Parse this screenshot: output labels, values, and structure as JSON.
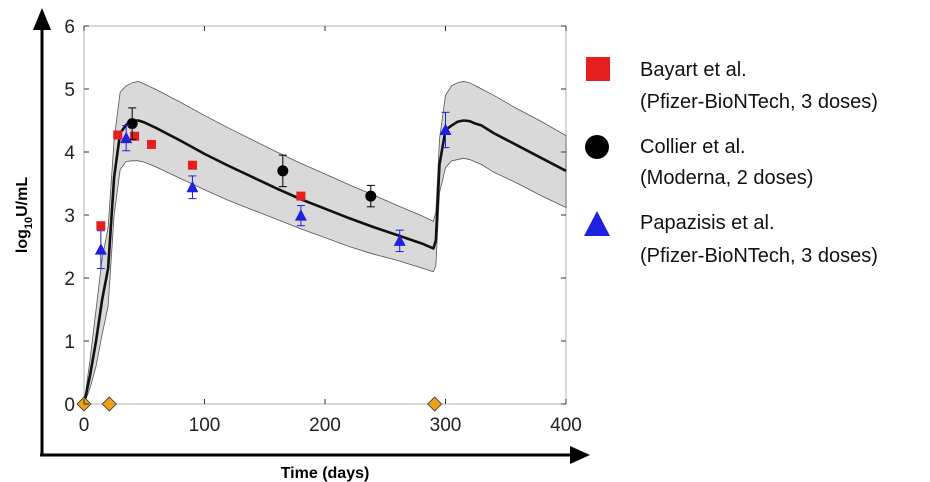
{
  "chart_data": {
    "type": "line",
    "xlabel": "Time (days)",
    "ylabel_main": "log",
    "ylabel_sub": "10",
    "ylabel_rest": "U/mL",
    "xlim": [
      0,
      400
    ],
    "ylim": [
      0,
      6
    ],
    "x_ticks": [
      0,
      100,
      200,
      300,
      400
    ],
    "y_ticks": [
      0,
      1,
      2,
      3,
      4,
      5,
      6
    ],
    "model": {
      "x": [
        0,
        5,
        10,
        15,
        20,
        25,
        30,
        35,
        40,
        45,
        50,
        60,
        80,
        100,
        120,
        140,
        160,
        180,
        200,
        220,
        240,
        260,
        280,
        290,
        292,
        295,
        300,
        305,
        310,
        315,
        320,
        325,
        330,
        340,
        360,
        380,
        400
      ],
      "y": [
        0,
        0.45,
        1.0,
        1.65,
        2.15,
        3.6,
        4.3,
        4.43,
        4.5,
        4.5,
        4.47,
        4.38,
        4.18,
        3.97,
        3.78,
        3.6,
        3.42,
        3.25,
        3.1,
        2.95,
        2.81,
        2.68,
        2.55,
        2.47,
        2.6,
        3.8,
        4.35,
        4.42,
        4.48,
        4.5,
        4.49,
        4.45,
        4.42,
        4.3,
        4.1,
        3.9,
        3.7
      ],
      "lower": [
        0,
        0.25,
        0.6,
        1.1,
        1.55,
        3.0,
        3.72,
        3.85,
        3.86,
        3.86,
        3.84,
        3.76,
        3.58,
        3.4,
        3.23,
        3.08,
        2.93,
        2.78,
        2.64,
        2.5,
        2.38,
        2.28,
        2.16,
        2.1,
        2.2,
        3.35,
        3.75,
        3.86,
        3.88,
        3.9,
        3.88,
        3.84,
        3.8,
        3.68,
        3.5,
        3.3,
        3.12
      ],
      "upper": [
        0,
        0.7,
        1.5,
        2.3,
        2.8,
        4.2,
        4.95,
        5.05,
        5.1,
        5.12,
        5.08,
        4.99,
        4.79,
        4.58,
        4.38,
        4.19,
        4.0,
        3.82,
        3.65,
        3.48,
        3.32,
        3.15,
        2.99,
        2.9,
        3.05,
        4.2,
        4.9,
        5.05,
        5.1,
        5.12,
        5.1,
        5.05,
        5.0,
        4.9,
        4.68,
        4.48,
        4.26
      ]
    },
    "doses": [
      0,
      21,
      291
    ],
    "series": [
      {
        "name": "Bayart et al.",
        "name_detail": "(Pfizer-BioNTech, 3 doses)",
        "marker": "square",
        "color": "#e61e1e",
        "x": [
          14,
          28,
          42,
          56,
          90,
          180
        ],
        "y": [
          2.83,
          4.27,
          4.25,
          4.12,
          3.79,
          3.3
        ],
        "err": [
          0.05,
          0.05,
          0.05,
          0.05,
          0.05,
          0.05
        ]
      },
      {
        "name": "Collier et al.",
        "name_detail": "(Moderna, 2 doses)",
        "marker": "circle",
        "color": "#000000",
        "x": [
          40,
          165,
          238
        ],
        "y": [
          4.45,
          3.7,
          3.3
        ],
        "err": [
          0.25,
          0.25,
          0.17
        ]
      },
      {
        "name": "Papazisis et al.",
        "name_detail": "(Pfizer-BioNTech, 3 doses)",
        "marker": "triangle",
        "color": "#2020e0",
        "x": [
          14,
          35,
          90,
          180,
          262,
          300
        ],
        "y": [
          2.45,
          4.22,
          3.44,
          2.99,
          2.59,
          4.35
        ],
        "err": [
          0.3,
          0.2,
          0.18,
          0.16,
          0.17,
          0.28
        ]
      }
    ]
  }
}
